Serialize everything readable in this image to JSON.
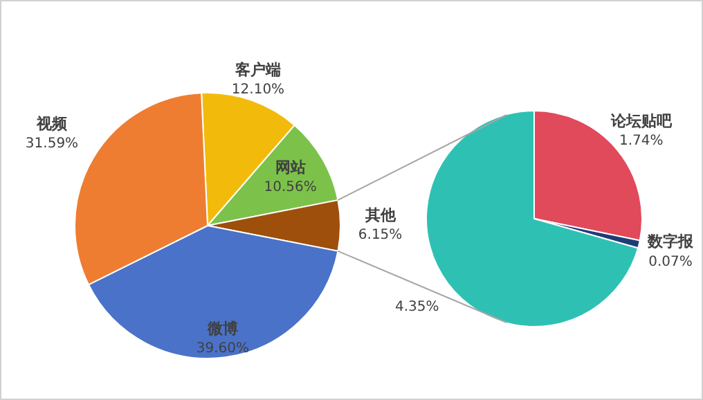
{
  "chart_data": [
    {
      "type": "pie",
      "categories": [
        "客户端",
        "网站",
        "其他",
        "微博",
        "视频"
      ],
      "values": [
        12.1,
        10.56,
        6.15,
        39.6,
        31.59
      ],
      "value_labels": [
        "12.10%",
        "10.56%",
        "6.15%",
        "39.60%",
        "31.59%"
      ],
      "colors": [
        "#f2bb0c",
        "#7cc24a",
        "#9e4f0c",
        "#4a72c8",
        "#ee7d31"
      ]
    },
    {
      "type": "pie",
      "categories": [
        "论坛贴吧",
        "数字报",
        null
      ],
      "values": [
        1.74,
        0.07,
        4.35
      ],
      "value_labels": [
        "1.74%",
        "0.07%",
        "4.35%"
      ],
      "colors": [
        "#e04a5b",
        "#1f3c78",
        "#2ec1b3"
      ]
    }
  ]
}
